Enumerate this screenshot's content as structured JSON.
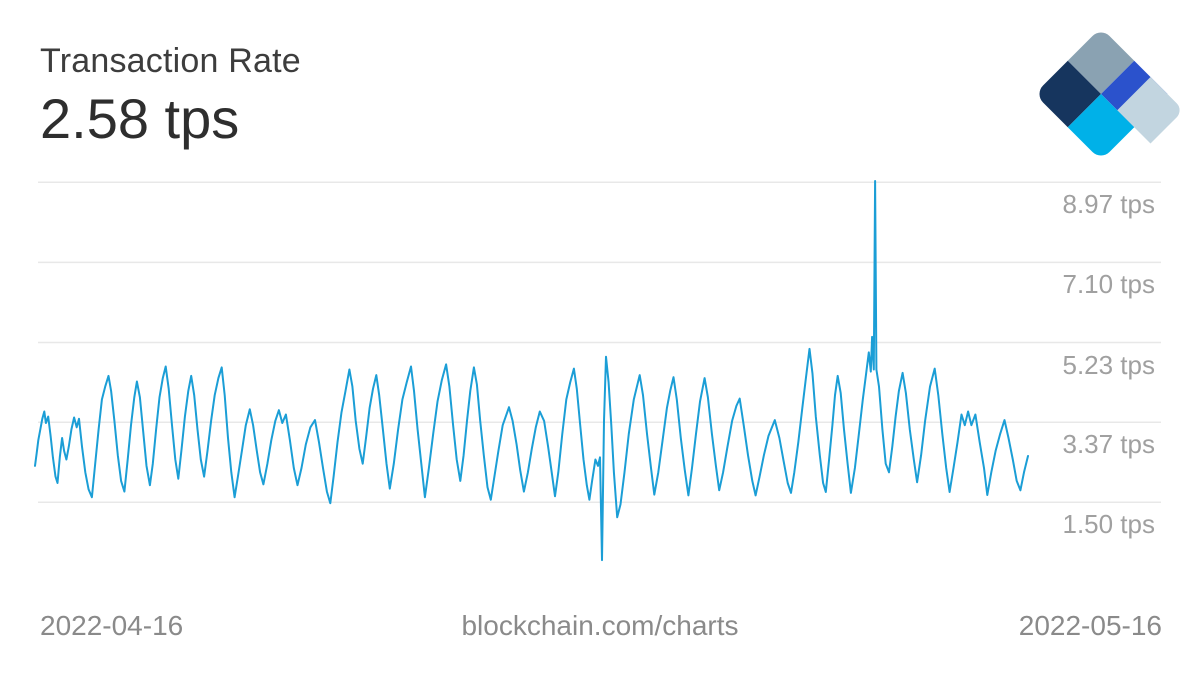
{
  "header": {
    "title": "Transaction Rate",
    "value": "2.58 tps"
  },
  "logo": {
    "name": "blockchain-com-diamond-logo",
    "colors": {
      "navy": "#16355e",
      "slate": "#8aa2b2",
      "royal": "#2b52cc",
      "pale": "#c2d5e0",
      "cyan": "#00b1e8"
    }
  },
  "footer": {
    "start_date": "2022-04-16",
    "caption": "blockchain.com/charts",
    "end_date": "2022-05-16"
  },
  "colors": {
    "background": "#ffffff",
    "title_text": "#3d3d3d",
    "value_text": "#2e2e2e",
    "axis_label_text": "#a0a0a0",
    "footer_text": "#8a8a8a"
  },
  "chart_data": {
    "type": "line",
    "title": "Transaction Rate",
    "unit": "tps",
    "current_value_tps": 2.58,
    "x_range": [
      "2022-04-16",
      "2022-05-16"
    ],
    "x_unit": "days since 2022-04-16",
    "grid": true,
    "legend": "none",
    "line_color": "#1b9ed6",
    "grid_color": "#e8e8e8",
    "y_ticks": [
      {
        "value": 8.97,
        "label": "8.97 tps"
      },
      {
        "value": 7.1,
        "label": "7.10 tps"
      },
      {
        "value": 5.23,
        "label": "5.23 tps"
      },
      {
        "value": 3.37,
        "label": "3.37 tps"
      },
      {
        "value": 1.5,
        "label": "1.50 tps"
      }
    ],
    "points": [
      [
        0.0,
        2.35
      ],
      [
        0.05,
        2.65
      ],
      [
        0.1,
        2.95
      ],
      [
        0.16,
        3.2
      ],
      [
        0.22,
        3.45
      ],
      [
        0.28,
        3.62
      ],
      [
        0.33,
        3.35
      ],
      [
        0.4,
        3.5
      ],
      [
        0.47,
        3.05
      ],
      [
        0.54,
        2.55
      ],
      [
        0.62,
        2.1
      ],
      [
        0.68,
        1.95
      ],
      [
        0.75,
        2.55
      ],
      [
        0.82,
        3.0
      ],
      [
        0.88,
        2.7
      ],
      [
        0.95,
        2.5
      ],
      [
        1.02,
        2.8
      ],
      [
        1.1,
        3.2
      ],
      [
        1.18,
        3.48
      ],
      [
        1.26,
        3.25
      ],
      [
        1.33,
        3.45
      ],
      [
        1.42,
        2.8
      ],
      [
        1.52,
        2.2
      ],
      [
        1.62,
        1.8
      ],
      [
        1.72,
        1.62
      ],
      [
        1.82,
        2.4
      ],
      [
        1.92,
        3.2
      ],
      [
        2.02,
        3.9
      ],
      [
        2.12,
        4.2
      ],
      [
        2.22,
        4.45
      ],
      [
        2.3,
        4.1
      ],
      [
        2.4,
        3.4
      ],
      [
        2.5,
        2.6
      ],
      [
        2.6,
        2.0
      ],
      [
        2.7,
        1.75
      ],
      [
        2.8,
        2.5
      ],
      [
        2.9,
        3.3
      ],
      [
        3.0,
        3.95
      ],
      [
        3.08,
        4.32
      ],
      [
        3.17,
        3.95
      ],
      [
        3.27,
        3.15
      ],
      [
        3.37,
        2.35
      ],
      [
        3.47,
        1.9
      ],
      [
        3.56,
        2.4
      ],
      [
        3.66,
        3.2
      ],
      [
        3.76,
        3.95
      ],
      [
        3.86,
        4.4
      ],
      [
        3.95,
        4.67
      ],
      [
        4.04,
        4.15
      ],
      [
        4.14,
        3.3
      ],
      [
        4.24,
        2.5
      ],
      [
        4.33,
        2.05
      ],
      [
        4.43,
        2.75
      ],
      [
        4.53,
        3.5
      ],
      [
        4.63,
        4.1
      ],
      [
        4.72,
        4.45
      ],
      [
        4.81,
        4.0
      ],
      [
        4.91,
        3.2
      ],
      [
        5.01,
        2.5
      ],
      [
        5.11,
        2.1
      ],
      [
        5.21,
        2.7
      ],
      [
        5.32,
        3.4
      ],
      [
        5.43,
        4.0
      ],
      [
        5.54,
        4.4
      ],
      [
        5.64,
        4.65
      ],
      [
        5.73,
        4.0
      ],
      [
        5.83,
        3.0
      ],
      [
        5.93,
        2.2
      ],
      [
        6.03,
        1.62
      ],
      [
        6.13,
        2.1
      ],
      [
        6.25,
        2.7
      ],
      [
        6.37,
        3.3
      ],
      [
        6.49,
        3.67
      ],
      [
        6.59,
        3.3
      ],
      [
        6.7,
        2.7
      ],
      [
        6.8,
        2.2
      ],
      [
        6.9,
        1.92
      ],
      [
        7.02,
        2.4
      ],
      [
        7.14,
        2.95
      ],
      [
        7.26,
        3.4
      ],
      [
        7.37,
        3.65
      ],
      [
        7.47,
        3.35
      ],
      [
        7.58,
        3.55
      ],
      [
        7.7,
        2.95
      ],
      [
        7.82,
        2.3
      ],
      [
        7.93,
        1.9
      ],
      [
        8.05,
        2.3
      ],
      [
        8.18,
        2.85
      ],
      [
        8.32,
        3.25
      ],
      [
        8.46,
        3.42
      ],
      [
        8.58,
        2.9
      ],
      [
        8.7,
        2.3
      ],
      [
        8.82,
        1.75
      ],
      [
        8.92,
        1.48
      ],
      [
        9.02,
        2.1
      ],
      [
        9.14,
        2.9
      ],
      [
        9.26,
        3.6
      ],
      [
        9.38,
        4.1
      ],
      [
        9.5,
        4.6
      ],
      [
        9.59,
        4.2
      ],
      [
        9.69,
        3.4
      ],
      [
        9.8,
        2.75
      ],
      [
        9.9,
        2.4
      ],
      [
        10.0,
        3.0
      ],
      [
        10.11,
        3.7
      ],
      [
        10.21,
        4.15
      ],
      [
        10.31,
        4.47
      ],
      [
        10.4,
        4.0
      ],
      [
        10.51,
        3.2
      ],
      [
        10.62,
        2.4
      ],
      [
        10.72,
        1.82
      ],
      [
        10.84,
        2.4
      ],
      [
        10.97,
        3.2
      ],
      [
        11.1,
        3.9
      ],
      [
        11.23,
        4.3
      ],
      [
        11.36,
        4.67
      ],
      [
        11.45,
        4.1
      ],
      [
        11.56,
        3.2
      ],
      [
        11.67,
        2.4
      ],
      [
        11.78,
        1.62
      ],
      [
        11.9,
        2.3
      ],
      [
        12.03,
        3.1
      ],
      [
        12.16,
        3.85
      ],
      [
        12.29,
        4.35
      ],
      [
        12.42,
        4.72
      ],
      [
        12.52,
        4.2
      ],
      [
        12.63,
        3.3
      ],
      [
        12.74,
        2.5
      ],
      [
        12.85,
        2.0
      ],
      [
        12.95,
        2.6
      ],
      [
        13.05,
        3.4
      ],
      [
        13.15,
        4.1
      ],
      [
        13.26,
        4.65
      ],
      [
        13.35,
        4.25
      ],
      [
        13.45,
        3.4
      ],
      [
        13.56,
        2.6
      ],
      [
        13.67,
        1.85
      ],
      [
        13.77,
        1.56
      ],
      [
        13.88,
        2.1
      ],
      [
        14.0,
        2.7
      ],
      [
        14.13,
        3.3
      ],
      [
        14.32,
        3.72
      ],
      [
        14.43,
        3.4
      ],
      [
        14.55,
        2.85
      ],
      [
        14.66,
        2.25
      ],
      [
        14.77,
        1.75
      ],
      [
        14.89,
        2.2
      ],
      [
        15.01,
        2.75
      ],
      [
        15.13,
        3.25
      ],
      [
        15.25,
        3.62
      ],
      [
        15.38,
        3.4
      ],
      [
        15.5,
        2.8
      ],
      [
        15.61,
        2.2
      ],
      [
        15.71,
        1.64
      ],
      [
        15.81,
        2.2
      ],
      [
        15.93,
        3.1
      ],
      [
        16.05,
        3.9
      ],
      [
        16.17,
        4.3
      ],
      [
        16.28,
        4.62
      ],
      [
        16.37,
        4.15
      ],
      [
        16.47,
        3.3
      ],
      [
        16.57,
        2.5
      ],
      [
        16.67,
        1.9
      ],
      [
        16.75,
        1.56
      ],
      [
        16.83,
        2.0
      ],
      [
        16.93,
        2.5
      ],
      [
        17.01,
        2.35
      ],
      [
        17.07,
        2.55
      ],
      [
        17.13,
        0.15
      ],
      [
        17.19,
        3.4
      ],
      [
        17.25,
        4.9
      ],
      [
        17.33,
        4.3
      ],
      [
        17.41,
        3.3
      ],
      [
        17.49,
        2.2
      ],
      [
        17.59,
        1.15
      ],
      [
        17.69,
        1.45
      ],
      [
        17.81,
        2.2
      ],
      [
        17.94,
        3.1
      ],
      [
        18.09,
        3.9
      ],
      [
        18.27,
        4.47
      ],
      [
        18.37,
        4.0
      ],
      [
        18.49,
        3.1
      ],
      [
        18.61,
        2.3
      ],
      [
        18.71,
        1.68
      ],
      [
        18.83,
        2.2
      ],
      [
        18.96,
        2.95
      ],
      [
        19.09,
        3.7
      ],
      [
        19.19,
        4.1
      ],
      [
        19.29,
        4.42
      ],
      [
        19.39,
        3.9
      ],
      [
        19.51,
        3.0
      ],
      [
        19.63,
        2.25
      ],
      [
        19.74,
        1.66
      ],
      [
        19.85,
        2.3
      ],
      [
        19.97,
        3.1
      ],
      [
        20.09,
        3.85
      ],
      [
        20.23,
        4.4
      ],
      [
        20.33,
        3.95
      ],
      [
        20.45,
        3.1
      ],
      [
        20.57,
        2.35
      ],
      [
        20.67,
        1.78
      ],
      [
        20.79,
        2.2
      ],
      [
        20.92,
        2.8
      ],
      [
        21.06,
        3.4
      ],
      [
        21.19,
        3.75
      ],
      [
        21.29,
        3.92
      ],
      [
        21.41,
        3.3
      ],
      [
        21.54,
        2.6
      ],
      [
        21.67,
        2.0
      ],
      [
        21.77,
        1.66
      ],
      [
        21.89,
        2.1
      ],
      [
        22.02,
        2.6
      ],
      [
        22.16,
        3.05
      ],
      [
        22.35,
        3.42
      ],
      [
        22.49,
        3.0
      ],
      [
        22.62,
        2.45
      ],
      [
        22.74,
        1.95
      ],
      [
        22.84,
        1.72
      ],
      [
        22.94,
        2.2
      ],
      [
        23.06,
        2.9
      ],
      [
        23.18,
        3.7
      ],
      [
        23.29,
        4.4
      ],
      [
        23.4,
        5.08
      ],
      [
        23.49,
        4.5
      ],
      [
        23.59,
        3.5
      ],
      [
        23.71,
        2.6
      ],
      [
        23.81,
        1.95
      ],
      [
        23.89,
        1.74
      ],
      [
        23.99,
        2.5
      ],
      [
        24.09,
        3.3
      ],
      [
        24.17,
        4.0
      ],
      [
        24.25,
        4.45
      ],
      [
        24.34,
        4.05
      ],
      [
        24.44,
        3.2
      ],
      [
        24.55,
        2.4
      ],
      [
        24.65,
        1.72
      ],
      [
        24.77,
        2.3
      ],
      [
        24.89,
        3.1
      ],
      [
        25.01,
        3.9
      ],
      [
        25.11,
        4.5
      ],
      [
        25.19,
        5.0
      ],
      [
        25.25,
        4.55
      ],
      [
        25.29,
        5.36
      ],
      [
        25.34,
        4.6
      ],
      [
        25.38,
        9.0
      ],
      [
        25.42,
        4.6
      ],
      [
        25.5,
        4.2
      ],
      [
        25.6,
        3.2
      ],
      [
        25.7,
        2.4
      ],
      [
        25.8,
        2.2
      ],
      [
        25.9,
        2.8
      ],
      [
        26.0,
        3.5
      ],
      [
        26.1,
        4.1
      ],
      [
        26.21,
        4.52
      ],
      [
        26.31,
        4.05
      ],
      [
        26.43,
        3.2
      ],
      [
        26.55,
        2.5
      ],
      [
        26.65,
        1.97
      ],
      [
        26.77,
        2.6
      ],
      [
        26.89,
        3.4
      ],
      [
        27.04,
        4.2
      ],
      [
        27.18,
        4.62
      ],
      [
        27.29,
        4.0
      ],
      [
        27.41,
        3.1
      ],
      [
        27.53,
        2.3
      ],
      [
        27.63,
        1.74
      ],
      [
        27.75,
        2.3
      ],
      [
        27.87,
        2.9
      ],
      [
        27.99,
        3.55
      ],
      [
        28.09,
        3.3
      ],
      [
        28.19,
        3.62
      ],
      [
        28.29,
        3.3
      ],
      [
        28.41,
        3.55
      ],
      [
        28.54,
        2.9
      ],
      [
        28.67,
        2.3
      ],
      [
        28.77,
        1.67
      ],
      [
        28.89,
        2.2
      ],
      [
        29.02,
        2.7
      ],
      [
        29.16,
        3.1
      ],
      [
        29.29,
        3.42
      ],
      [
        29.41,
        3.0
      ],
      [
        29.54,
        2.5
      ],
      [
        29.66,
        2.0
      ],
      [
        29.77,
        1.78
      ],
      [
        29.88,
        2.2
      ],
      [
        30.0,
        2.58
      ]
    ]
  }
}
